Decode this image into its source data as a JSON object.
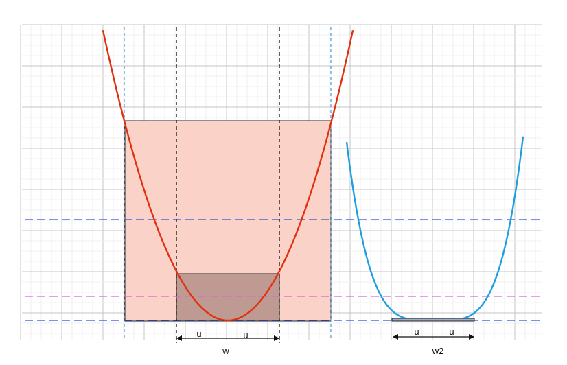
{
  "labels": {
    "left_u1": "u",
    "left_u2": "u",
    "left_width": "w",
    "right_u1": "u",
    "right_u2": "u",
    "right_width": "w2"
  },
  "colors": {
    "background": "#ffffff",
    "grid_minor": "#ececec",
    "grid_major": "#c4c4c4",
    "parabola": "#e03010",
    "quartic": "#1e9ee0",
    "big_square_fill": "#fbd2c8",
    "small_square_fill": "#b4908a",
    "horizontal_blue": "#2f4fd9",
    "horizontal_magenta": "#e060e0",
    "vertical_blue": "#2f7fc0",
    "vertical_black": "#111111",
    "arrow": "#111111"
  },
  "curves": [
    {
      "name": "parabola",
      "degree": 2
    },
    {
      "name": "quartic",
      "degree": 4
    }
  ]
}
